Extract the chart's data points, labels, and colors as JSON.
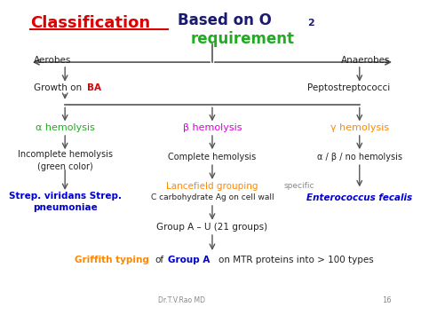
{
  "bg_color": "#ffffff",
  "fig_width": 4.74,
  "fig_height": 3.55,
  "title_classification": "Classification",
  "title_based": "Based on O",
  "title_sub2": "2",
  "title_requirement": "requirement",
  "color_red": "#dd0000",
  "color_darkblue": "#1a1a6e",
  "color_green": "#22aa22",
  "color_magenta": "#dd00dd",
  "color_orange": "#ff8800",
  "color_blue": "#0000cc",
  "color_dark": "#222222",
  "color_gray": "#888888",
  "color_arrow": "#555555"
}
